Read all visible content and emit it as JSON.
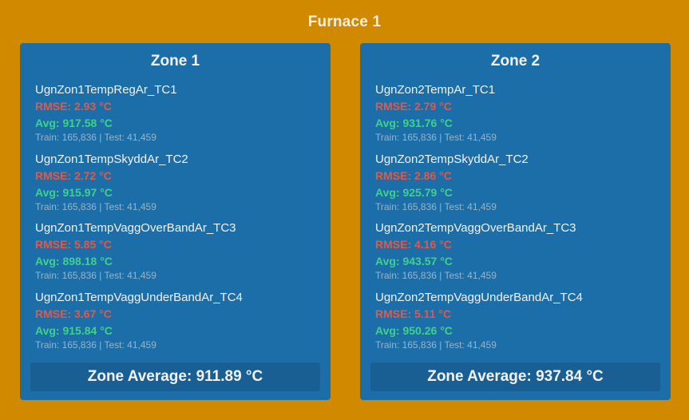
{
  "furnace": {
    "title": "Furnace 1"
  },
  "zones": [
    {
      "title": "Zone 1",
      "sensors": [
        {
          "name": "UgnZon1TempRegAr_TC1",
          "rmse": "RMSE: 2.93 °C",
          "avg": "Avg: 917.58 °C",
          "counts": "Train: 165,836 | Test: 41,459"
        },
        {
          "name": "UgnZon1TempSkyddAr_TC2",
          "rmse": "RMSE: 2.72 °C",
          "avg": "Avg: 915.97 °C",
          "counts": "Train: 165,836 | Test: 41,459"
        },
        {
          "name": "UgnZon1TempVaggOverBandAr_TC3",
          "rmse": "RMSE: 5.85 °C",
          "avg": "Avg: 898.18 °C",
          "counts": "Train: 165,836 | Test: 41,459"
        },
        {
          "name": "UgnZon1TempVaggUnderBandAr_TC4",
          "rmse": "RMSE: 3.67 °C",
          "avg": "Avg: 915.84 °C",
          "counts": "Train: 165,836 | Test: 41,459"
        }
      ],
      "zone_average": "Zone Average: 911.89 °C"
    },
    {
      "title": "Zone 2",
      "sensors": [
        {
          "name": "UgnZon2TempAr_TC1",
          "rmse": "RMSE: 2.79 °C",
          "avg": "Avg: 931.76 °C",
          "counts": "Train: 165,836 | Test: 41,459"
        },
        {
          "name": "UgnZon2TempSkyddAr_TC2",
          "rmse": "RMSE: 2.86 °C",
          "avg": "Avg: 925.79 °C",
          "counts": "Train: 165,836 | Test: 41,459"
        },
        {
          "name": "UgnZon2TempVaggOverBandAr_TC3",
          "rmse": "RMSE: 4.16 °C",
          "avg": "Avg: 943.57 °C",
          "counts": "Train: 165,836 | Test: 41,459"
        },
        {
          "name": "UgnZon2TempVaggUnderBandAr_TC4",
          "rmse": "RMSE: 5.11 °C",
          "avg": "Avg: 950.26 °C",
          "counts": "Train: 165,836 | Test: 41,459"
        }
      ],
      "zone_average": "Zone Average: 937.84 °C"
    }
  ],
  "colors": {
    "background": "#d18a00",
    "panel": "#1c6ea8",
    "rmse": "#e05a4a",
    "avg": "#3fd28a"
  }
}
